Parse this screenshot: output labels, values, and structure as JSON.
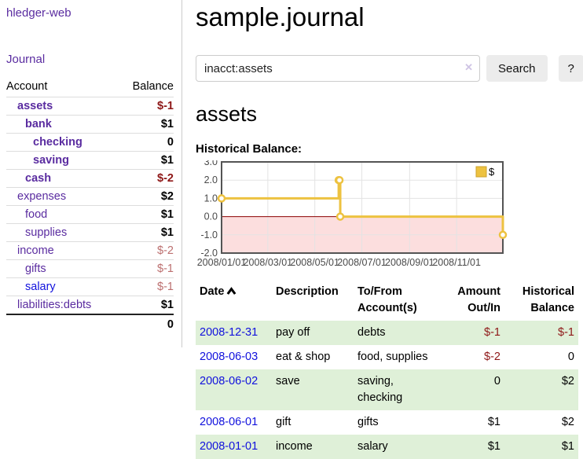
{
  "app": {
    "brand": "hledger-web",
    "nav_journal": "Journal"
  },
  "colors": {
    "link_purple": "#5a2ca0",
    "link_blue": "#1111dd",
    "negative": "#8e1717",
    "negative_muted": "#bc6f6f",
    "row_stripe_green": "#dff0d8",
    "chart_line_gold": "#edc240"
  },
  "sidebar": {
    "header": {
      "account": "Account",
      "balance": "Balance"
    },
    "accounts": [
      {
        "name": "assets",
        "balance": "$-1"
      },
      {
        "name": "bank",
        "balance": "$1"
      },
      {
        "name": "checking",
        "balance": "0"
      },
      {
        "name": "saving",
        "balance": "$1"
      },
      {
        "name": "cash",
        "balance": "$-2"
      },
      {
        "name": "expenses",
        "balance": "$2"
      },
      {
        "name": "food",
        "balance": "$1"
      },
      {
        "name": "supplies",
        "balance": "$1"
      },
      {
        "name": "income",
        "balance": "$-2"
      },
      {
        "name": "gifts",
        "balance": "$-1"
      },
      {
        "name": "salary",
        "balance": "$-1"
      },
      {
        "name": "liabilities:debts",
        "balance": "$1"
      }
    ],
    "total": "0"
  },
  "main": {
    "title": "sample.journal",
    "search": {
      "value": "inacct:assets",
      "clear_glyph": "✕",
      "button": "Search",
      "help": "?"
    },
    "account_heading": "assets",
    "chart_label": "Historical Balance:"
  },
  "chart_data": {
    "type": "line",
    "step": true,
    "series": [
      {
        "name": "$",
        "color": "#edc240",
        "points": [
          [
            "2008/01/01",
            1
          ],
          [
            "2008/06/01",
            2
          ],
          [
            "2008/06/02",
            2
          ],
          [
            "2008/06/03",
            0
          ],
          [
            "2008/12/31",
            -1
          ]
        ]
      }
    ],
    "xlim": [
      "2008/01/01",
      "2008/12/31"
    ],
    "ylim": [
      -2,
      3
    ],
    "yticks": [
      {
        "v": 3,
        "label": "3.0"
      },
      {
        "v": 2,
        "label": "2.0"
      },
      {
        "v": 1,
        "label": "1.0"
      },
      {
        "v": 0,
        "label": "0.0"
      },
      {
        "v": -1,
        "label": "-1.0"
      },
      {
        "v": -2,
        "label": "-2.0"
      }
    ],
    "xticks": [
      "2008/01/01",
      "2008/03/01",
      "2008/05/01",
      "2008/07/01",
      "2008/09/01",
      "2008/11/01"
    ],
    "legend_position": "top-right",
    "negative_region_color": "#fcdede",
    "zero_line_color": "#8b0000",
    "grid": true
  },
  "register": {
    "headers": {
      "date": "Date",
      "description": "Description",
      "accounts": "To/From Account(s)",
      "amount": "Amount Out/In",
      "balance": "Historical Balance"
    },
    "sort": "ascending",
    "rows": [
      {
        "date": "2008-12-31",
        "description": "pay off",
        "accounts": "debts",
        "amount": "$-1",
        "balance": "$-1"
      },
      {
        "date": "2008-06-03",
        "description": "eat & shop",
        "accounts": "food, supplies",
        "amount": "$-2",
        "balance": "0"
      },
      {
        "date": "2008-06-02",
        "description": "save",
        "accounts": "saving, checking",
        "amount": "0",
        "balance": "$2"
      },
      {
        "date": "2008-06-01",
        "description": "gift",
        "accounts": "gifts",
        "amount": "$1",
        "balance": "$2"
      },
      {
        "date": "2008-01-01",
        "description": "income",
        "accounts": "salary",
        "amount": "$1",
        "balance": "$1"
      }
    ]
  }
}
